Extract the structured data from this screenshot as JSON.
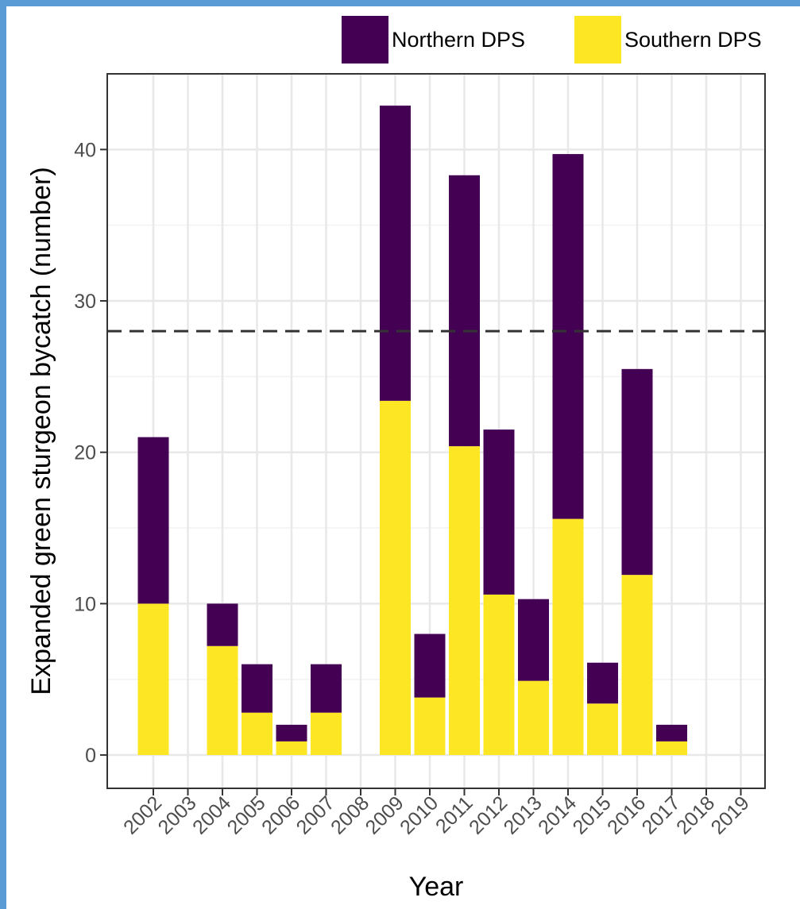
{
  "chart_data": {
    "type": "bar",
    "stacked": true,
    "title": "",
    "xlabel": "Year",
    "ylabel": "Expanded green sturgeon bycatch (number)",
    "categories": [
      "2002",
      "2003",
      "2004",
      "2005",
      "2006",
      "2007",
      "2008",
      "2009",
      "2010",
      "2011",
      "2012",
      "2013",
      "2014",
      "2015",
      "2016",
      "2017",
      "2018",
      "2019"
    ],
    "series": [
      {
        "name": "Southern DPS",
        "color": "#fde725",
        "values": [
          10,
          0,
          7.2,
          2.8,
          0.9,
          2.8,
          0,
          23.4,
          3.8,
          20.4,
          10.6,
          4.9,
          15.6,
          3.4,
          11.9,
          0.9,
          0,
          0
        ]
      },
      {
        "name": "Northern DPS",
        "color": "#440154",
        "values": [
          11,
          0,
          2.8,
          3.2,
          1.1,
          3.2,
          0,
          19.5,
          4.2,
          17.9,
          10.9,
          5.4,
          24.1,
          2.7,
          13.6,
          1.1,
          0,
          0
        ]
      }
    ],
    "reference_line": {
      "y": 28,
      "style": "dashed"
    },
    "ylim": [
      -2.2,
      45
    ],
    "yticks": [
      0,
      10,
      20,
      30,
      40
    ],
    "grid": true,
    "legend_position": "top-right"
  }
}
